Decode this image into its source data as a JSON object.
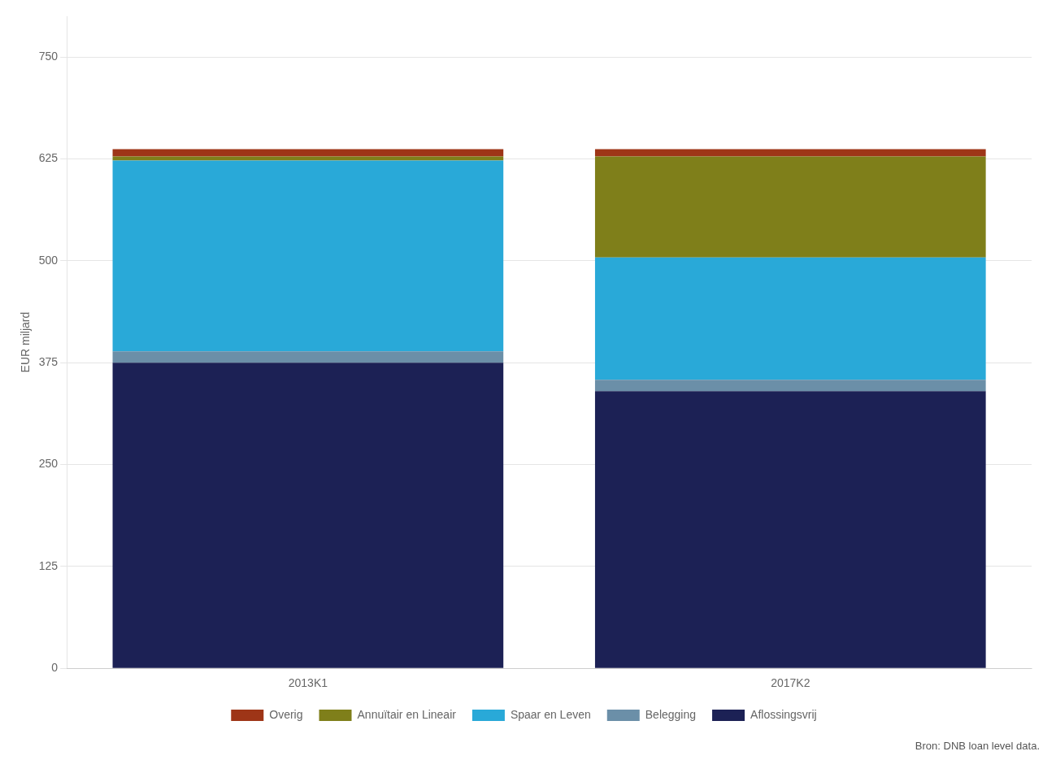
{
  "chart_data": {
    "type": "bar",
    "stacked": true,
    "categories": [
      "2013K1",
      "2017K2"
    ],
    "series": [
      {
        "name": "Aflossingsvrij",
        "values": [
          375,
          340
        ],
        "color": "#1c2155"
      },
      {
        "name": "Belegging",
        "values": [
          14,
          14
        ],
        "color": "#6b8fa8"
      },
      {
        "name": "Spaar en Leven",
        "values": [
          234,
          150
        ],
        "color": "#29a9d8"
      },
      {
        "name": "Annuïtair en Lineair",
        "values": [
          5,
          124
        ],
        "color": "#7f7f1a"
      },
      {
        "name": "Overig",
        "values": [
          9,
          9
        ],
        "color": "#9e3517"
      }
    ],
    "ylabel": "EUR miljard",
    "ylim": [
      0,
      800
    ],
    "yticks": [
      0,
      125,
      250,
      375,
      500,
      625,
      750
    ],
    "grid": true,
    "legend": "bottom",
    "annotations": [
      "Bron: DNB loan level data."
    ]
  }
}
